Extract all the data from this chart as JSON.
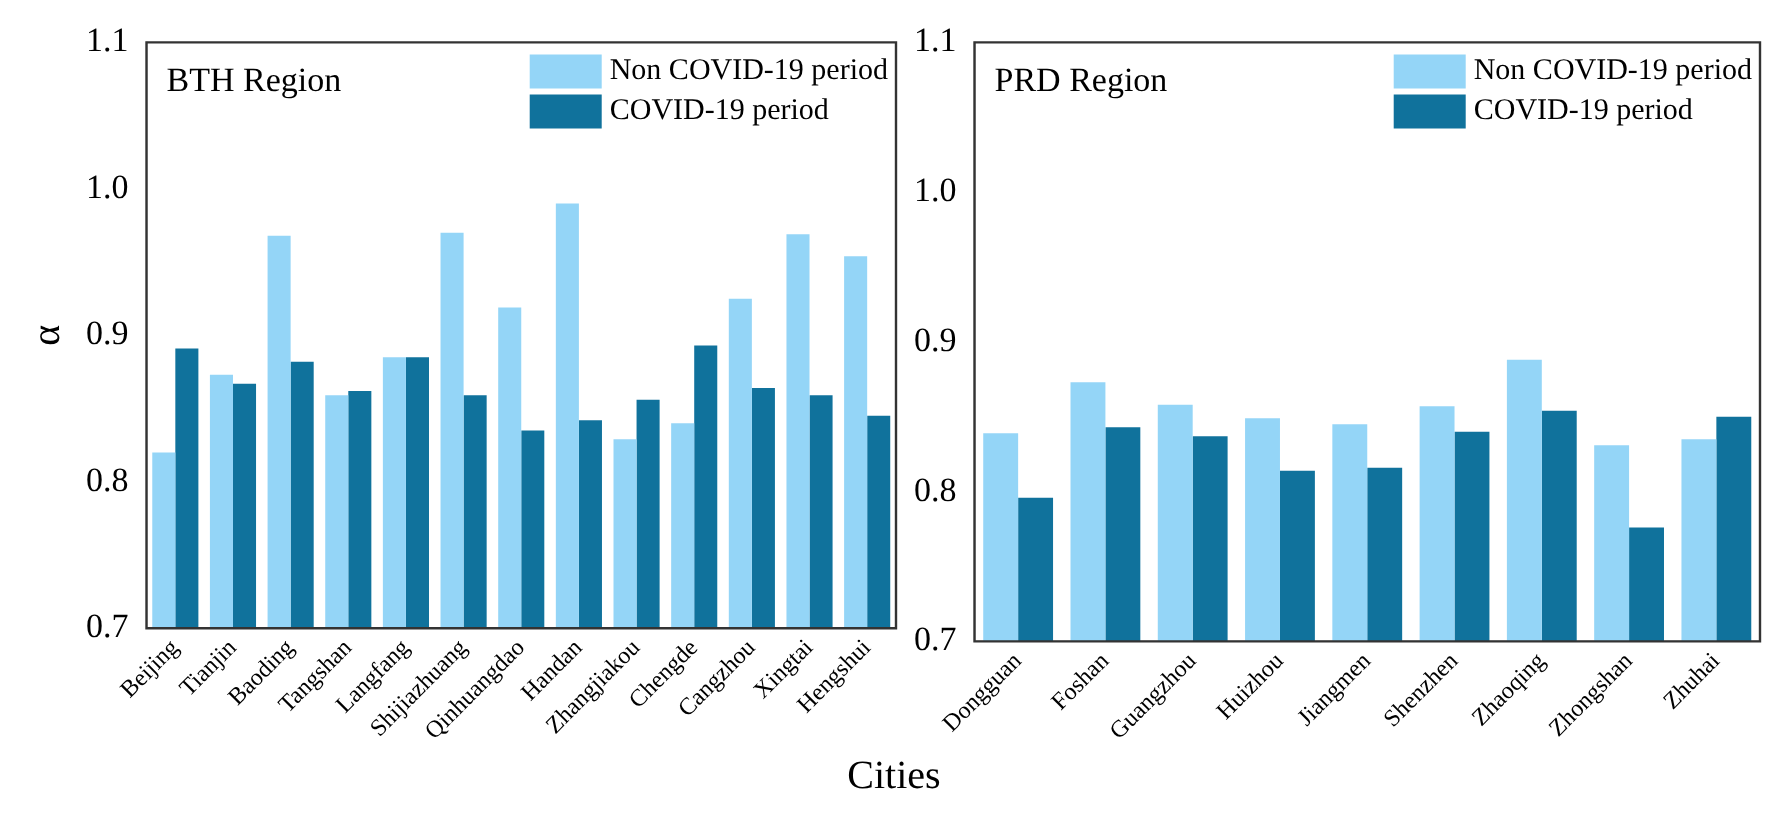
{
  "chart_data": [
    {
      "type": "bar",
      "title": "BTH Region",
      "xlabel": "Cities",
      "ylabel": "α",
      "categories": [
        "Beijing",
        "Tianjin",
        "Baoding",
        "Tangshan",
        "Langfang",
        "Shijiazhuang",
        "Qinhuangdao",
        "Handan",
        "Zhangjiakou",
        "Chengde",
        "Cangzhou",
        "Xingtai",
        "Hengshui"
      ],
      "series": [
        {
          "name": "Non COVID-19 period",
          "color": "#94d5f7",
          "values": [
            0.82,
            0.873,
            0.968,
            0.859,
            0.885,
            0.97,
            0.919,
            0.99,
            0.829,
            0.84,
            0.925,
            0.969,
            0.954
          ]
        },
        {
          "name": "COVID-19 period",
          "color": "#10729c",
          "values": [
            0.891,
            0.867,
            0.882,
            0.862,
            0.885,
            0.859,
            0.835,
            0.842,
            0.856,
            0.893,
            0.864,
            0.859,
            0.845
          ]
        }
      ],
      "ylim": [
        0.7,
        1.1
      ],
      "yticks": [
        0.7,
        0.8,
        0.9,
        {
          "value": 1.0,
          "label": "1.0"
        },
        1.1
      ],
      "grid": false,
      "legend": "top right"
    },
    {
      "type": "bar",
      "title": "PRD Region",
      "categories": [
        "Dongguan",
        "Foshan",
        "Guangzhou",
        "Huizhou",
        "Jiangmen",
        "Shenzhen",
        "Zhaoqing",
        "Zhongshan",
        "Zhuhai"
      ],
      "series": [
        {
          "name": "Non COVID-19 period",
          "color": "#94d5f7",
          "values": [
            0.839,
            0.873,
            0.858,
            0.849,
            0.845,
            0.857,
            0.888,
            0.831,
            0.835
          ]
        },
        {
          "name": "COVID-19 period",
          "color": "#10729c",
          "values": [
            0.796,
            0.843,
            0.837,
            0.814,
            0.816,
            0.84,
            0.854,
            0.776,
            0.85
          ]
        }
      ],
      "ylim": [
        0.7,
        1.1
      ],
      "yticks": [
        0.7,
        0.8,
        0.9,
        {
          "value": 1.0,
          "label": "1.0"
        },
        1.1
      ],
      "grid": false,
      "legend": "top right"
    }
  ]
}
